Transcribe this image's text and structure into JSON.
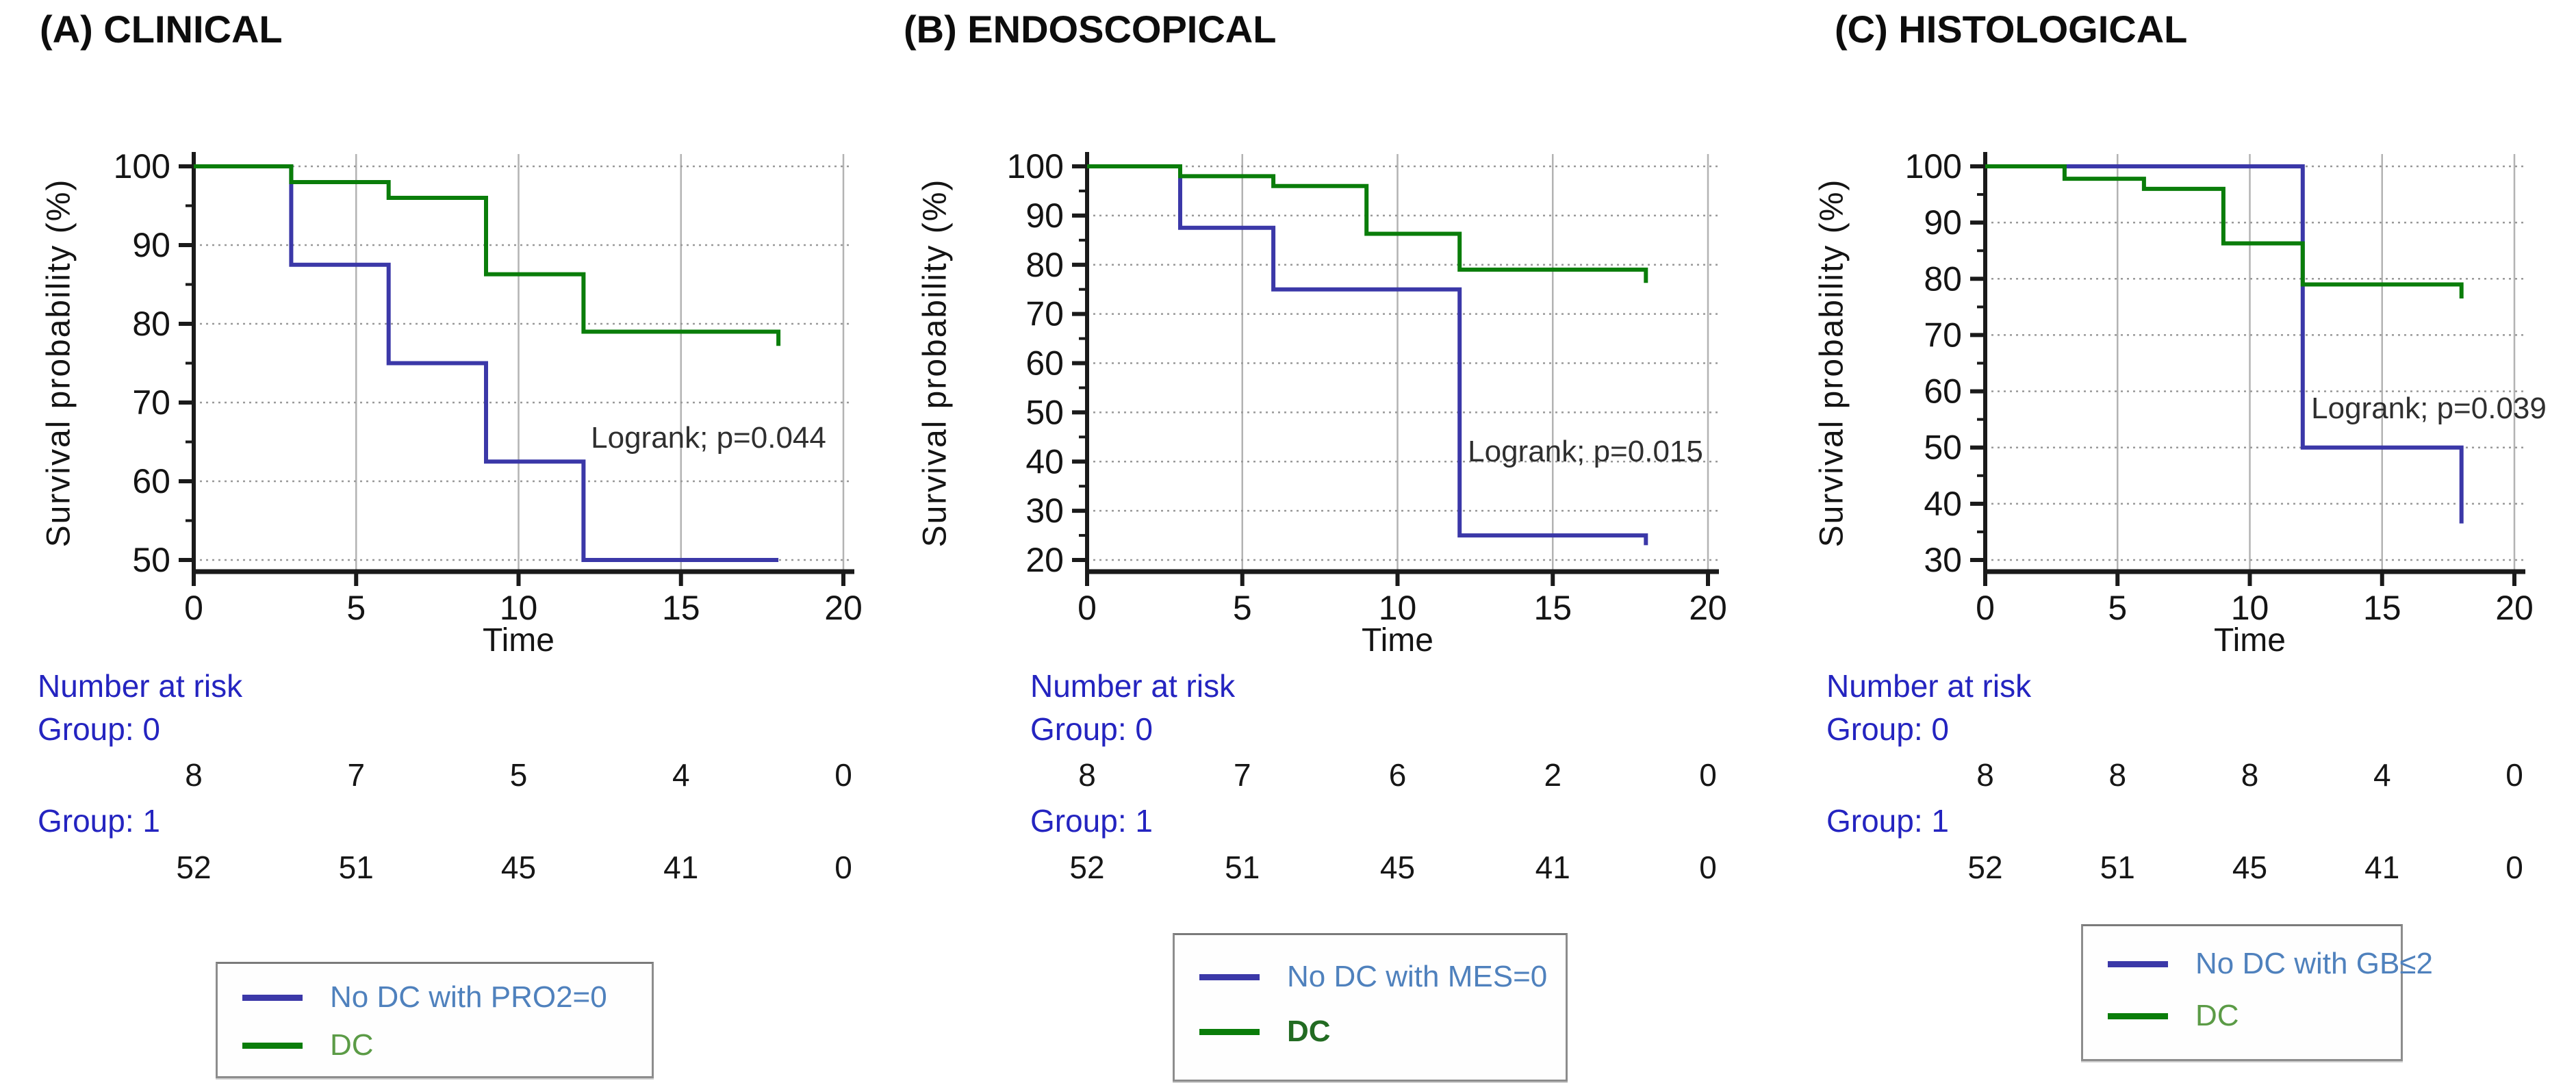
{
  "colors": {
    "curve_blue": "#3b38a8",
    "curve_green": "#0a7d0a",
    "risk_text_blue": "#2424c0",
    "legend_text_blue": "#4f81bd",
    "legend_text_green": "#5b9b46",
    "grid_dotted": "#999999",
    "grid_vertical": "#b3b3b3",
    "axis_black": "#1a1a1a"
  },
  "chart_data": [
    {
      "type": "line",
      "panel": "A",
      "title": "(A) CLINICAL",
      "xlabel": "Time",
      "ylabel": "Survival probability (%)",
      "xticks": [
        0,
        5,
        10,
        15,
        20
      ],
      "yticks": [
        50,
        60,
        70,
        80,
        90,
        100
      ],
      "xlim": [
        0,
        20
      ],
      "ylim": [
        48,
        102
      ],
      "grid": "horizontal-dotted, vertical-solid",
      "annotation": "Logrank; p=0.044",
      "series": [
        {
          "name": "No DC with PRO2=0",
          "color": "#3b38a8",
          "points": [
            [
              0,
              100
            ],
            [
              3,
              100
            ],
            [
              3,
              87.5
            ],
            [
              6,
              87.5
            ],
            [
              6,
              75
            ],
            [
              9,
              75
            ],
            [
              9,
              62.5
            ],
            [
              12,
              62.5
            ],
            [
              12,
              50
            ],
            [
              18,
              50
            ]
          ]
        },
        {
          "name": "DC",
          "color": "#0a7d0a",
          "points": [
            [
              0,
              100
            ],
            [
              3,
              100
            ],
            [
              3,
              98
            ],
            [
              6,
              98
            ],
            [
              6,
              96
            ],
            [
              9,
              96
            ],
            [
              9,
              86.3
            ],
            [
              12,
              86.3
            ],
            [
              12,
              79
            ],
            [
              18,
              79
            ],
            [
              18,
              77.2
            ]
          ]
        }
      ],
      "number_at_risk": {
        "label": "Number at risk",
        "groups": [
          {
            "label": "Group: 0",
            "values": [
              8,
              7,
              5,
              4,
              0
            ]
          },
          {
            "label": "Group: 1",
            "values": [
              52,
              51,
              45,
              41,
              0
            ]
          }
        ]
      }
    },
    {
      "type": "line",
      "panel": "B",
      "title": "(B) ENDOSCOPICAL",
      "xlabel": "Time",
      "ylabel": "Survival probability (%)",
      "xticks": [
        0,
        5,
        10,
        15,
        20
      ],
      "yticks": [
        20,
        30,
        40,
        50,
        60,
        70,
        80,
        90,
        100
      ],
      "xlim": [
        0,
        20
      ],
      "ylim": [
        18,
        102
      ],
      "grid": "horizontal-dotted, vertical-solid",
      "annotation": "Logrank; p=0.015",
      "series": [
        {
          "name": "No DC with MES=0",
          "color": "#3b38a8",
          "points": [
            [
              0,
              100
            ],
            [
              3,
              100
            ],
            [
              3,
              87.5
            ],
            [
              6,
              87.5
            ],
            [
              6,
              75
            ],
            [
              12,
              75
            ],
            [
              12,
              25
            ],
            [
              18,
              25
            ],
            [
              18,
              23
            ]
          ]
        },
        {
          "name": "DC",
          "color": "#0a7d0a",
          "points": [
            [
              0,
              100
            ],
            [
              3,
              100
            ],
            [
              3,
              98
            ],
            [
              6,
              98
            ],
            [
              6,
              96
            ],
            [
              9,
              96
            ],
            [
              9,
              86.3
            ],
            [
              12,
              86.3
            ],
            [
              12,
              79
            ],
            [
              18,
              79
            ],
            [
              18,
              76.3
            ]
          ]
        }
      ],
      "number_at_risk": {
        "label": "Number at risk",
        "groups": [
          {
            "label": "Group: 0",
            "values": [
              8,
              7,
              6,
              2,
              0
            ]
          },
          {
            "label": "Group: 1",
            "values": [
              52,
              51,
              45,
              41,
              0
            ]
          }
        ]
      }
    },
    {
      "type": "line",
      "panel": "C",
      "title": "(C) HISTOLOGICAL",
      "xlabel": "Time",
      "ylabel": "Survival probability (%)",
      "xticks": [
        0,
        5,
        10,
        15,
        20
      ],
      "yticks": [
        30,
        40,
        50,
        60,
        70,
        80,
        90,
        100
      ],
      "xlim": [
        0,
        20
      ],
      "ylim": [
        28,
        102
      ],
      "grid": "horizontal-dotted, vertical-solid",
      "annotation": "Logrank; p=0.039",
      "series": [
        {
          "name": "No DC with GB≤2",
          "color": "#3b38a8",
          "points": [
            [
              0,
              100
            ],
            [
              12,
              100
            ],
            [
              12,
              50
            ],
            [
              18,
              50
            ],
            [
              18,
              36.5
            ]
          ]
        },
        {
          "name": "DC",
          "color": "#0a7d0a",
          "points": [
            [
              0,
              100
            ],
            [
              3,
              100
            ],
            [
              3,
              97.8
            ],
            [
              6,
              97.8
            ],
            [
              6,
              96
            ],
            [
              9,
              96
            ],
            [
              9,
              86.3
            ],
            [
              12,
              86.3
            ],
            [
              12,
              79
            ],
            [
              18,
              79
            ],
            [
              18,
              76.5
            ]
          ]
        }
      ],
      "number_at_risk": {
        "label": "Number at risk",
        "groups": [
          {
            "label": "Group: 0",
            "values": [
              8,
              8,
              8,
              4,
              0
            ]
          },
          {
            "label": "Group: 1",
            "values": [
              52,
              51,
              45,
              41,
              0
            ]
          }
        ]
      }
    }
  ]
}
